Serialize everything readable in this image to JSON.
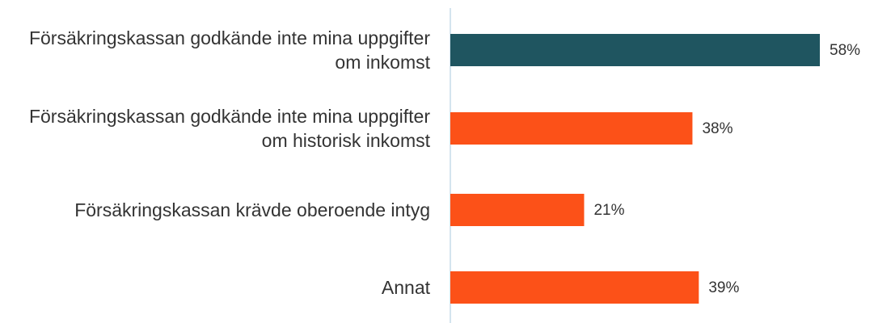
{
  "chart_data": {
    "type": "bar",
    "orientation": "horizontal",
    "categories": [
      "Försäkringskassan godkände inte mina uppgifter om inkomst",
      "Försäkringskassan godkände inte mina uppgifter om historisk inkomst",
      "Försäkringskassan krävde oberoende intyg",
      "Annat"
    ],
    "values": [
      58,
      38,
      21,
      39
    ],
    "value_labels": [
      "58%",
      "38%",
      "21%",
      "39%"
    ],
    "colors": [
      "#1f5560",
      "#fc5118",
      "#fc5118",
      "#fc5118"
    ]
  }
}
